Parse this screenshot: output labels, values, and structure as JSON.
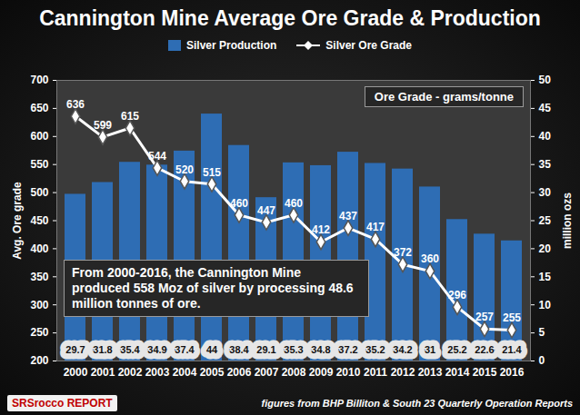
{
  "chart_data": {
    "type": "bar",
    "title": "Cannington Mine Average Ore Grade & Production",
    "categories": [
      "2000",
      "2001",
      "2002",
      "2003",
      "2004",
      "2005",
      "2006",
      "2007",
      "2008",
      "2009",
      "2010",
      "2011",
      "2012",
      "2013",
      "2014",
      "2015",
      "2016"
    ],
    "series": [
      {
        "name": "Silver Production",
        "type": "bar",
        "color": "#2e6db4",
        "axis": "y2",
        "values": [
          29.7,
          31.8,
          35.4,
          34.9,
          37.4,
          44,
          38.4,
          29.1,
          35.3,
          34.8,
          37.2,
          35.2,
          34.2,
          31,
          25.2,
          22.6,
          21.4
        ]
      },
      {
        "name": "Silver Ore Grade",
        "type": "line",
        "color": "#ffffff",
        "marker": "diamond",
        "line_style": "solid",
        "values": [
          636,
          599,
          615,
          544,
          520,
          515,
          460,
          447,
          460,
          412,
          437,
          417,
          372,
          360,
          296,
          257,
          255
        ]
      }
    ],
    "ylim": [
      200,
      700
    ],
    "yticks": [
      200,
      250,
      300,
      350,
      400,
      450,
      500,
      550,
      600,
      650,
      700
    ],
    "y2lim": [
      0,
      50
    ],
    "y2ticks": [
      0,
      5,
      10,
      15,
      20,
      25,
      30,
      35,
      40,
      45,
      50
    ],
    "y_label": "Avg. Ore grade",
    "y2_label": "million ozs",
    "annotations": [
      "Ore Grade - grams/tonne",
      "From 2000-2016, the Cannington Mine produced 558 Moz of silver by processing 48.6 million tonnes of ore."
    ],
    "source": "figures from BHP Billiton & South 23 Quarterly Operation Reports",
    "logo": "SRSrocco REPORT",
    "data_labels": true,
    "grid": false,
    "legend": "top"
  }
}
